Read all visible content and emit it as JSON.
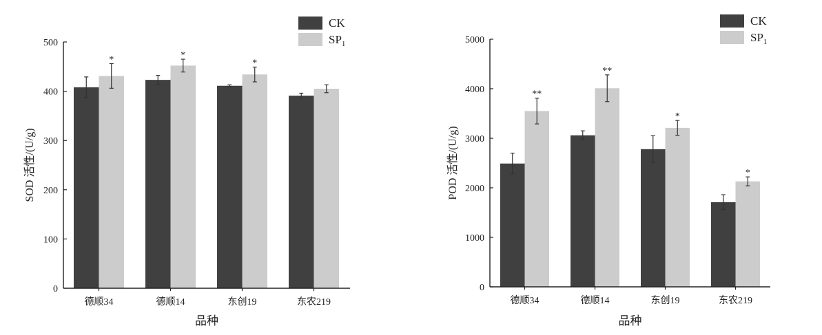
{
  "chart_data": [
    {
      "type": "bar",
      "title": "",
      "xlabel": "品种",
      "ylabel": "SOD 活性/(U/g)",
      "ylim": [
        0,
        500
      ],
      "yticks": [
        0,
        100,
        200,
        300,
        400,
        500
      ],
      "categories": [
        "德顺34",
        "德顺14",
        "东创19",
        "东农219"
      ],
      "legend_position": "top-right",
      "series": [
        {
          "name": "CK",
          "color": "#404040",
          "values": [
            408,
            423,
            411,
            391
          ],
          "errors": [
            21,
            9,
            2,
            5
          ],
          "marks": [
            "",
            "",
            "",
            ""
          ]
        },
        {
          "name": "SP",
          "sub": "1",
          "color": "#cccccc",
          "values": [
            431,
            452,
            434,
            405
          ],
          "errors": [
            25,
            13,
            15,
            8
          ],
          "marks": [
            "*",
            "*",
            "*",
            ""
          ]
        }
      ]
    },
    {
      "type": "bar",
      "title": "",
      "xlabel": "品种",
      "ylabel": "POD 活性/(U/g)",
      "ylim": [
        0,
        5000
      ],
      "yticks": [
        0,
        1000,
        2000,
        3000,
        4000,
        5000
      ],
      "categories": [
        "德顺34",
        "德顺14",
        "东创19",
        "东农219"
      ],
      "legend_position": "top-right",
      "series": [
        {
          "name": "CK",
          "color": "#404040",
          "values": [
            2490,
            3060,
            2780,
            1710
          ],
          "errors": [
            210,
            90,
            270,
            150
          ],
          "marks": [
            "",
            "",
            "",
            ""
          ]
        },
        {
          "name": "SP",
          "sub": "1",
          "color": "#cccccc",
          "values": [
            3550,
            4010,
            3210,
            2130
          ],
          "errors": [
            260,
            270,
            150,
            90
          ],
          "marks": [
            "**",
            "**",
            "*",
            "*"
          ]
        }
      ]
    }
  ]
}
